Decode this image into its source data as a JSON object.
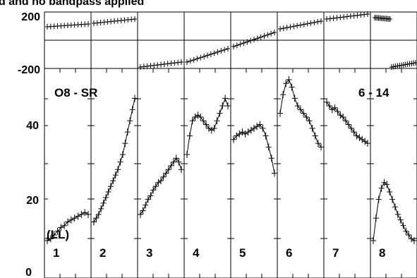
{
  "header_text": "d and no bandpass applied",
  "chart_data": {
    "type": "line",
    "subtitle_left": "O8 - SR",
    "subtitle_right": "6 - 14",
    "legend_label": "(LL)",
    "phase_panel": {
      "yticks": [
        "200",
        "-200"
      ],
      "ylim": [
        -200,
        200
      ]
    },
    "amp_panel": {
      "yticks": [
        "0",
        "20",
        "40"
      ],
      "ylim": [
        0,
        56
      ]
    },
    "panels": [
      {
        "label": "1",
        "phase": {
          "start": 95,
          "end": 115
        },
        "amp": [
          10,
          10.5,
          11.5,
          12.5,
          13.5,
          14,
          15,
          15.5,
          16,
          16.5,
          17,
          17.5,
          17
        ]
      },
      {
        "label": "2",
        "phase": {
          "start": 120,
          "end": 150
        },
        "amp": [
          15,
          16,
          17,
          18.5,
          20,
          21.5,
          23,
          24.5,
          26,
          27.5,
          29,
          31,
          33,
          36,
          39,
          42,
          45,
          48
        ]
      },
      {
        "label": "3",
        "phase": {
          "start": -190,
          "end": -155
        },
        "amp": [
          17,
          18,
          19.5,
          21,
          22,
          23.5,
          24.5,
          25.5,
          26,
          27,
          28,
          29,
          30,
          31,
          32,
          31,
          29
        ]
      },
      {
        "label": "4",
        "phase": {
          "start": -155,
          "end": -60
        },
        "amp": [
          33,
          38,
          42,
          43,
          43.5,
          43,
          42,
          41,
          40,
          39.5,
          40,
          42,
          44,
          46,
          48,
          46
        ]
      },
      {
        "label": "5",
        "phase": {
          "start": -45,
          "end": 55
        },
        "amp": [
          37,
          38,
          38.5,
          39,
          38.5,
          39,
          39.5,
          40,
          40.5,
          41,
          40,
          38,
          35,
          32,
          28
        ]
      },
      {
        "label": "6",
        "phase": {
          "start": 80,
          "end": 135
        },
        "amp": [
          44,
          49,
          52,
          53,
          51,
          48,
          46,
          45,
          44,
          43,
          42,
          40,
          38,
          36,
          35
        ]
      },
      {
        "label": "7",
        "phase": {
          "start": 150,
          "end": 185
        },
        "amp": [
          47,
          46,
          45,
          45.5,
          44.5,
          43.5,
          43,
          42,
          41,
          40,
          39,
          38,
          37.5,
          37,
          36.5,
          36
        ]
      },
      {
        "label": "8",
        "phase": {
          "start": 160,
          "end": 150,
          "start2": -190,
          "end2": -160
        },
        "amp": [
          10,
          16,
          21,
          24,
          25.5,
          25,
          23,
          21,
          19,
          17,
          15.5,
          14,
          12.5,
          11.5,
          10.5,
          10
        ]
      }
    ]
  }
}
